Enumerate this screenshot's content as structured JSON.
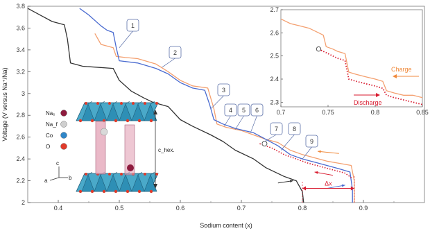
{
  "chart_data": [
    {
      "type": "line",
      "xlabel": "Sodium content (x)",
      "ylabel": "Voltage (V versus Na⁺/Na)",
      "xlim": [
        0.35,
        1.0
      ],
      "ylim": [
        2.0,
        3.8
      ],
      "x_ticks": [
        0.4,
        0.5,
        0.6,
        0.7,
        0.8,
        0.9
      ],
      "y_ticks": [
        2.0,
        2.2,
        2.4,
        2.6,
        2.8,
        3.0,
        3.2,
        3.4,
        3.6,
        3.8
      ],
      "grid": false,
      "series": [
        {
          "color": "#333333",
          "style": "solid",
          "points": [
            [
              0.35,
              3.78
            ],
            [
              0.37,
              3.72
            ],
            [
              0.39,
              3.66
            ],
            [
              0.41,
              3.63
            ],
            [
              0.415,
              3.5
            ],
            [
              0.42,
              3.28
            ],
            [
              0.44,
              3.25
            ],
            [
              0.49,
              3.23
            ],
            [
              0.5,
              3.12
            ],
            [
              0.52,
              3.02
            ],
            [
              0.54,
              2.96
            ],
            [
              0.555,
              2.92
            ],
            [
              0.58,
              2.88
            ],
            [
              0.6,
              2.76
            ],
            [
              0.62,
              2.7
            ],
            [
              0.65,
              2.62
            ],
            [
              0.67,
              2.56
            ],
            [
              0.69,
              2.48
            ],
            [
              0.72,
              2.4
            ],
            [
              0.74,
              2.32
            ],
            [
              0.77,
              2.24
            ],
            [
              0.79,
              2.2
            ],
            [
              0.8,
              2.1
            ],
            [
              0.802,
              2.0
            ]
          ]
        },
        {
          "color": "#f4a070",
          "style": "solid",
          "points": [
            [
              0.46,
              3.55
            ],
            [
              0.47,
              3.45
            ],
            [
              0.49,
              3.42
            ],
            [
              0.495,
              3.34
            ],
            [
              0.51,
              3.33
            ],
            [
              0.53,
              3.32
            ],
            [
              0.56,
              3.27
            ],
            [
              0.58,
              3.2
            ],
            [
              0.6,
              3.12
            ],
            [
              0.62,
              3.07
            ],
            [
              0.645,
              3.05
            ],
            [
              0.655,
              2.86
            ],
            [
              0.66,
              2.72
            ],
            [
              0.675,
              2.69
            ],
            [
              0.7,
              2.66
            ],
            [
              0.72,
              2.62
            ],
            [
              0.74,
              2.58
            ],
            [
              0.76,
              2.55
            ],
            [
              0.78,
              2.48
            ],
            [
              0.8,
              2.44
            ],
            [
              0.82,
              2.41
            ],
            [
              0.84,
              2.38
            ],
            [
              0.86,
              2.36
            ],
            [
              0.88,
              2.34
            ],
            [
              0.885,
              2.2
            ],
            [
              0.885,
              2.0
            ]
          ]
        },
        {
          "color": "#4a6bd0",
          "style": "solid",
          "points": [
            [
              0.435,
              3.78
            ],
            [
              0.45,
              3.72
            ],
            [
              0.47,
              3.62
            ],
            [
              0.48,
              3.58
            ],
            [
              0.49,
              3.56
            ],
            [
              0.495,
              3.42
            ],
            [
              0.5,
              3.3
            ],
            [
              0.53,
              3.28
            ],
            [
              0.56,
              3.23
            ],
            [
              0.58,
              3.18
            ],
            [
              0.6,
              3.1
            ],
            [
              0.62,
              3.05
            ],
            [
              0.64,
              3.03
            ],
            [
              0.648,
              2.9
            ],
            [
              0.655,
              2.76
            ],
            [
              0.67,
              2.72
            ],
            [
              0.69,
              2.68
            ],
            [
              0.72,
              2.64
            ],
            [
              0.74,
              2.58
            ],
            [
              0.76,
              2.52
            ],
            [
              0.78,
              2.44
            ],
            [
              0.8,
              2.4
            ],
            [
              0.82,
              2.37
            ],
            [
              0.84,
              2.34
            ],
            [
              0.86,
              2.31
            ],
            [
              0.878,
              2.28
            ],
            [
              0.882,
              2.12
            ],
            [
              0.882,
              2.0
            ]
          ]
        },
        {
          "color": "#d81a2e",
          "style": "dotted",
          "points": [
            [
              0.73,
              2.54
            ],
            [
              0.75,
              2.5
            ],
            [
              0.77,
              2.44
            ],
            [
              0.79,
              2.4
            ],
            [
              0.81,
              2.36
            ],
            [
              0.83,
              2.33
            ],
            [
              0.85,
              2.3
            ],
            [
              0.87,
              2.27
            ],
            [
              0.882,
              2.22
            ]
          ]
        }
      ],
      "callouts": [
        "1",
        "2",
        "3",
        "4",
        "5",
        "6",
        "7",
        "8",
        "9"
      ],
      "delta_label": "Δx",
      "delta_range": [
        0.8,
        0.885
      ],
      "structure": {
        "legend": [
          {
            "label": "Naₑ",
            "color": "#8e1b3e"
          },
          {
            "label": "Na_f",
            "color": "#cfcfcf"
          },
          {
            "label": "Co",
            "color": "#2f86c8"
          },
          {
            "label": "O",
            "color": "#e03a2a"
          }
        ],
        "c_label": "c_hex.",
        "axes": [
          "c",
          "a",
          "b"
        ]
      }
    },
    {
      "type": "line",
      "xlim": [
        0.7,
        0.85
      ],
      "ylim": [
        2.28,
        2.7
      ],
      "x_ticks": [
        0.7,
        0.75,
        0.8,
        0.85
      ],
      "y_ticks": [
        2.3,
        2.4,
        2.5,
        2.6,
        2.7
      ],
      "legend": [
        {
          "label": "Charge",
          "color": "#f08a3c"
        },
        {
          "label": "Discharge",
          "color": "#d81a2e"
        }
      ],
      "series": [
        {
          "color": "#f4a070",
          "style": "solid",
          "points": [
            [
              0.7,
              2.66
            ],
            [
              0.71,
              2.64
            ],
            [
              0.72,
              2.63
            ],
            [
              0.73,
              2.62
            ],
            [
              0.74,
              2.6
            ],
            [
              0.745,
              2.59
            ],
            [
              0.748,
              2.54
            ],
            [
              0.755,
              2.53
            ],
            [
              0.76,
              2.52
            ],
            [
              0.768,
              2.51
            ],
            [
              0.772,
              2.43
            ],
            [
              0.78,
              2.42
            ],
            [
              0.79,
              2.41
            ],
            [
              0.8,
              2.4
            ],
            [
              0.808,
              2.39
            ],
            [
              0.812,
              2.35
            ],
            [
              0.82,
              2.34
            ],
            [
              0.83,
              2.33
            ],
            [
              0.84,
              2.33
            ],
            [
              0.85,
              2.32
            ]
          ]
        },
        {
          "color": "#d81a2e",
          "style": "dotted",
          "points": [
            [
              0.74,
              2.53
            ],
            [
              0.75,
              2.51
            ],
            [
              0.76,
              2.49
            ],
            [
              0.768,
              2.48
            ],
            [
              0.772,
              2.4
            ],
            [
              0.78,
              2.39
            ],
            [
              0.79,
              2.38
            ],
            [
              0.8,
              2.37
            ],
            [
              0.808,
              2.36
            ],
            [
              0.812,
              2.33
            ],
            [
              0.82,
              2.32
            ],
            [
              0.83,
              2.31
            ],
            [
              0.84,
              2.3
            ],
            [
              0.85,
              2.29
            ]
          ]
        }
      ]
    }
  ]
}
